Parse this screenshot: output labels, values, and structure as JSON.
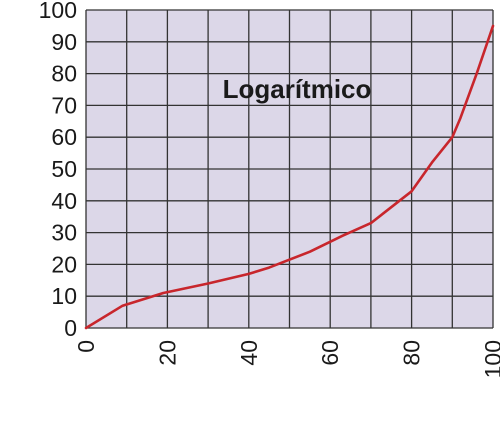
{
  "chart_data": {
    "type": "line",
    "title": "Logarítmico",
    "xlim": [
      0,
      100
    ],
    "ylim": [
      0,
      100
    ],
    "x_ticks": [
      "0",
      "20",
      "40",
      "60",
      "80",
      "100"
    ],
    "y_ticks": [
      "0",
      "10",
      "20",
      "30",
      "40",
      "50",
      "60",
      "70",
      "80",
      "90",
      "100"
    ],
    "grid": true,
    "x_grid_step": 10,
    "y_grid_step": 10,
    "series": [
      {
        "x": [
          0,
          9,
          19,
          30,
          40,
          45,
          55,
          63,
          70,
          77,
          80,
          85,
          90,
          92,
          96,
          100
        ],
        "y": [
          0,
          7,
          11,
          14,
          17,
          19,
          24,
          29,
          33,
          40,
          43,
          52,
          60,
          66,
          80,
          95
        ]
      }
    ],
    "colors": {
      "plot_background": "#dcd7e8",
      "grid": "#333333",
      "line": "#c8262c",
      "text": "#1a1a1a"
    }
  }
}
